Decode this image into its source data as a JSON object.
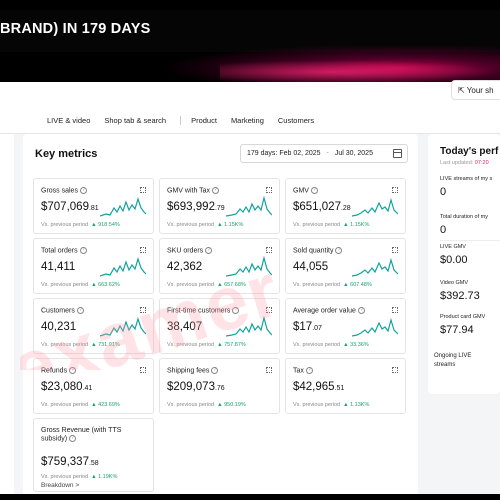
{
  "banner": {
    "title": "BRAND) IN 179 DAYS"
  },
  "nav": {
    "items": [
      "LIVE & video",
      "Shop tab & search",
      "Product",
      "Marketing",
      "Customers"
    ],
    "your_shop": "Your sh"
  },
  "key_metrics": {
    "title": "Key metrics",
    "date_range": {
      "label": "179 days:",
      "start": "Feb 02, 2025",
      "separator": "-",
      "end": "Jul 30, 2025"
    },
    "cards": [
      {
        "label": "Gross sales",
        "value": "$707,069",
        "dec": ".81",
        "compare": "Vs. previous period",
        "change": "918.54%"
      },
      {
        "label": "GMV with Tax",
        "value": "$693,992",
        "dec": ".79",
        "compare": "Vs. previous period",
        "change": "1.15K%"
      },
      {
        "label": "GMV",
        "value": "$651,027",
        "dec": ".28",
        "compare": "Vs. previous period",
        "change": "1.15K%"
      },
      {
        "label": "Total orders",
        "value": "41,411",
        "dec": "",
        "compare": "Vs. previous period",
        "change": "663.62%"
      },
      {
        "label": "SKU orders",
        "value": "42,362",
        "dec": "",
        "compare": "Vs. previous period",
        "change": "657.68%"
      },
      {
        "label": "Sold quantity",
        "value": "44,055",
        "dec": "",
        "compare": "Vs. previous period",
        "change": "607.48%"
      },
      {
        "label": "Customers",
        "value": "40,231",
        "dec": "",
        "compare": "Vs. previous period",
        "change": "731.91%"
      },
      {
        "label": "First-time customers",
        "value": "38,407",
        "dec": "",
        "compare": "Vs. previous period",
        "change": "757.87%"
      },
      {
        "label": "Average order value",
        "value": "$17",
        "dec": ".07",
        "compare": "Vs. previous period",
        "change": "33.36%"
      },
      {
        "label": "Refunds",
        "value": "$23,080",
        "dec": ".41",
        "compare": "Vs. previous period",
        "change": "423.69%"
      },
      {
        "label": "Shipping fees",
        "value": "$209,073",
        "dec": ".76",
        "compare": "Vs. previous period",
        "change": "950.19%"
      },
      {
        "label": "Tax",
        "value": "$42,965",
        "dec": ".51",
        "compare": "Vs. previous period",
        "change": "1.13K%"
      },
      {
        "label": "Gross Revenue (with TTS subsidy)",
        "value": "$759,337",
        "dec": ".58",
        "compare": "Vs. previous period",
        "change": "1.19K%",
        "link": "Breakdown >"
      }
    ]
  },
  "today": {
    "title": "Today's perf",
    "updated_label": "Last updated:",
    "updated_time": "07:20",
    "rows": [
      {
        "label": "LIVE streams of my s",
        "value": "0"
      },
      {
        "label": "Total duration of my",
        "value": "0"
      },
      {
        "label": "LIVE GMV",
        "value": "$0.00"
      },
      {
        "label": "Video GMV",
        "value": "$392.73"
      },
      {
        "label": "Product card GMV",
        "value": "$77.94"
      }
    ],
    "ongoing": "Ongoing LIVE streams"
  },
  "colors": {
    "accent_green": "#1aa36b",
    "spark_teal": "#11a39b",
    "watermark": "#ff9aa8"
  }
}
